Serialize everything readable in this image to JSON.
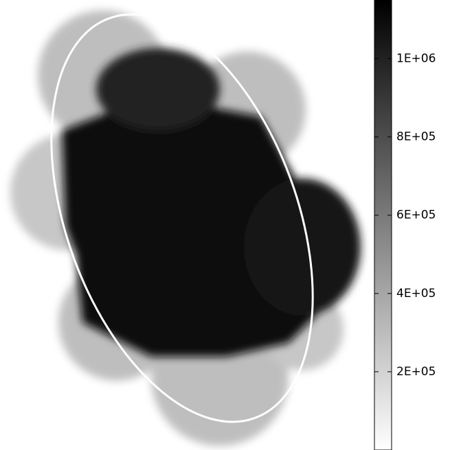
{
  "chart_data": {
    "type": "image",
    "colorbar": {
      "clim": [
        0,
        1150000
      ],
      "ticks": [
        {
          "value": 200000,
          "label": "2E+05"
        },
        {
          "value": 400000,
          "label": "4E+05"
        },
        {
          "value": 600000,
          "label": "6E+05"
        },
        {
          "value": 800000,
          "label": "8E+05"
        },
        {
          "value": 1000000,
          "label": "1E+06"
        }
      ],
      "colors": [
        "#ffffff",
        "#000000"
      ]
    }
  }
}
